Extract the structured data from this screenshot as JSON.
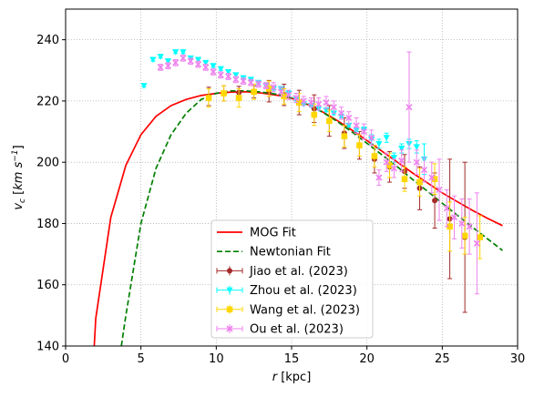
{
  "chart_data": {
    "type": "scatter",
    "xlabel": "r [kpc]",
    "ylabel": "v_c [km s^-1]",
    "xlim": [
      0,
      30
    ],
    "ylim": [
      140,
      250
    ],
    "xticks": [
      0,
      5,
      10,
      15,
      20,
      25,
      30
    ],
    "yticks": [
      140,
      160,
      180,
      200,
      220,
      240
    ],
    "grid": "dotted",
    "legend_position": "lower-center",
    "curves": [
      {
        "name": "MOG Fit",
        "color": "#ff0000",
        "style": "solid",
        "x": [
          1.9,
          2.0,
          3.0,
          4.0,
          5.0,
          6.0,
          7.0,
          8.0,
          9.0,
          10.0,
          11.0,
          12.0,
          13.0,
          14.0,
          15.0,
          16.0,
          17.0,
          18.0,
          19.0,
          20.0,
          21.0,
          22.0,
          23.0,
          24.0,
          25.0,
          26.0,
          27.0,
          28.0,
          29.0
        ],
        "y": [
          140,
          149,
          182,
          199,
          209,
          215,
          218.5,
          220.5,
          221.8,
          222.5,
          222.9,
          223.0,
          222.6,
          221.9,
          220.9,
          219.0,
          216.6,
          213.7,
          210.5,
          207.1,
          203.6,
          200.1,
          196.6,
          193.3,
          190.0,
          187.1,
          184.3,
          181.7,
          179.3
        ]
      },
      {
        "name": "Newtonian Fit",
        "color": "#008000",
        "style": "dashed",
        "x": [
          3.7,
          4.0,
          5.0,
          6.0,
          7.0,
          8.0,
          9.0,
          10.0,
          11.0,
          12.0,
          13.0,
          14.0,
          15.0,
          16.0,
          17.0,
          18.0,
          19.0,
          20.0,
          21.0,
          22.0,
          23.0,
          24.0,
          25.0,
          26.0,
          27.0,
          28.0,
          29.0
        ],
        "y": [
          140,
          150,
          180,
          198,
          209,
          216,
          220.5,
          222.5,
          223.3,
          223.3,
          222.9,
          222.2,
          221.0,
          219.0,
          216.5,
          213.4,
          209.9,
          206.2,
          202.4,
          198.6,
          194.5,
          190.6,
          186.6,
          182.7,
          178.8,
          175.0,
          171.2
        ]
      }
    ],
    "series": [
      {
        "name": "Jiao et al. (2023)",
        "color": "#a52a2a",
        "marker": "circle",
        "x": [
          9.5,
          10.5,
          11.5,
          12.5,
          13.5,
          14.5,
          15.5,
          16.5,
          17.5,
          18.5,
          19.5,
          20.5,
          21.5,
          22.5,
          23.5,
          24.5,
          25.5,
          26.5
        ],
        "y": [
          221.5,
          222.5,
          222.8,
          223.0,
          223.2,
          222.0,
          219.5,
          217.5,
          213.5,
          209.5,
          205.5,
          201.0,
          198.5,
          197.0,
          191.5,
          187.5,
          181.5,
          175.5
        ],
        "yerr": [
          3.0,
          2.5,
          2.0,
          2.0,
          3.5,
          3.5,
          4.0,
          4.5,
          5.0,
          5.0,
          4.5,
          4.5,
          5.0,
          5.5,
          7.0,
          9.0,
          19.5,
          24.5
        ]
      },
      {
        "name": "Zhou et al. (2023)",
        "color": "#00ffff",
        "marker": "triangle-down",
        "x": [
          5.2,
          5.8,
          6.3,
          6.8,
          7.3,
          7.8,
          8.3,
          8.8,
          9.3,
          9.8,
          10.3,
          10.8,
          11.3,
          11.8,
          12.3,
          12.8,
          13.3,
          13.8,
          14.3,
          14.8,
          15.3,
          15.8,
          16.3,
          16.8,
          17.3,
          17.8,
          18.3,
          18.8,
          19.3,
          19.8,
          20.3,
          20.8,
          21.3,
          21.8,
          22.3,
          22.8,
          23.3,
          23.8
        ],
        "y": [
          225.0,
          233.5,
          234.5,
          233.0,
          236.0,
          236.0,
          234.0,
          233.5,
          232.5,
          231.5,
          230.5,
          229.5,
          228.5,
          227.5,
          227.0,
          226.0,
          225.0,
          224.0,
          224.0,
          222.5,
          220.5,
          219.0,
          218.5,
          217.5,
          217.0,
          216.0,
          215.0,
          212.0,
          210.5,
          210.5,
          207.5,
          206.0,
          208.0,
          201.5,
          204.5,
          206.0,
          205.0,
          201.0
        ],
        "yerr": [
          0.5,
          0.5,
          0.5,
          0.5,
          0.5,
          0.5,
          0.5,
          0.5,
          0.5,
          0.5,
          0.5,
          0.5,
          0.5,
          0.5,
          0.5,
          0.5,
          0.5,
          0.5,
          0.5,
          0.5,
          0.5,
          0.5,
          0.5,
          0.5,
          0.5,
          0.5,
          0.5,
          0.5,
          0.5,
          1.0,
          1.5,
          1.5,
          1.5,
          1.5,
          1.5,
          1.5,
          2.0,
          5.0
        ]
      },
      {
        "name": "Wang et al. (2023)",
        "color": "#ffd700",
        "marker": "square",
        "x": [
          9.5,
          10.5,
          11.5,
          12.5,
          13.5,
          14.5,
          15.5,
          16.5,
          17.5,
          18.5,
          19.5,
          20.5,
          21.5,
          22.5,
          23.5,
          24.5,
          25.5,
          26.5,
          27.5
        ],
        "y": [
          221.0,
          222.5,
          221.0,
          223.0,
          224.0,
          221.5,
          219.5,
          215.5,
          213.5,
          208.5,
          205.5,
          202.0,
          199.0,
          194.5,
          193.5,
          194.5,
          179.0,
          176.0,
          175.5
        ],
        "yerr": [
          3.0,
          2.5,
          3.0,
          2.5,
          2.5,
          2.5,
          3.0,
          3.5,
          3.5,
          3.5,
          3.5,
          3.5,
          4.0,
          4.0,
          4.5,
          5.0,
          8.0,
          6.0,
          7.0
        ]
      },
      {
        "name": "Ou et al. (2023)",
        "color": "#ee82ee",
        "marker": "x",
        "x": [
          6.3,
          6.8,
          7.3,
          7.8,
          8.3,
          8.8,
          9.3,
          9.8,
          10.3,
          10.8,
          11.3,
          11.8,
          12.3,
          12.8,
          13.3,
          13.8,
          14.3,
          14.8,
          15.3,
          15.8,
          16.3,
          16.8,
          17.3,
          17.8,
          18.3,
          18.8,
          19.3,
          19.8,
          20.3,
          20.8,
          21.3,
          21.8,
          22.3,
          22.8,
          23.3,
          23.8,
          24.3,
          24.8,
          25.3,
          25.8,
          26.3,
          26.8,
          27.3
        ],
        "y": [
          231.0,
          231.5,
          232.5,
          234.0,
          233.0,
          232.0,
          231.0,
          229.5,
          228.5,
          228.0,
          227.0,
          226.5,
          226.0,
          225.5,
          225.0,
          224.5,
          223.0,
          222.0,
          221.0,
          220.0,
          219.5,
          219.0,
          219.5,
          218.0,
          216.0,
          214.5,
          212.0,
          210.0,
          208.0,
          195.0,
          200.0,
          198.0,
          200.5,
          218.0,
          200.0,
          197.5,
          195.0,
          191.0,
          185.0,
          182.0,
          180.0,
          179.0,
          173.5
        ],
        "yerr": [
          1.0,
          1.0,
          1.0,
          1.0,
          1.0,
          1.0,
          1.0,
          1.0,
          1.0,
          1.0,
          1.0,
          1.0,
          1.0,
          1.0,
          1.0,
          1.5,
          1.5,
          1.5,
          1.5,
          1.5,
          1.5,
          2.0,
          2.0,
          2.0,
          2.0,
          2.0,
          2.5,
          2.5,
          2.5,
          2.5,
          3.0,
          3.0,
          3.5,
          18.0,
          4.0,
          4.0,
          5.0,
          10.0,
          6.0,
          7.0,
          8.0,
          9.0,
          16.5
        ]
      }
    ]
  }
}
